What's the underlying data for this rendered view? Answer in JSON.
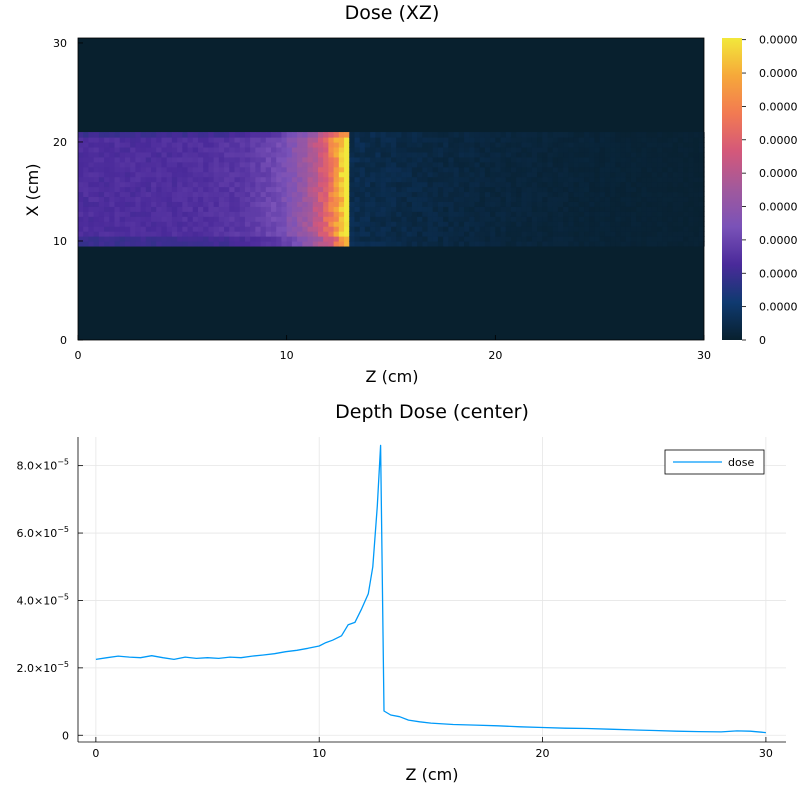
{
  "chart_data": [
    {
      "type": "heatmap",
      "title": "Dose (XZ)",
      "xlabel": "Z (cm)",
      "ylabel": "X (cm)",
      "xlim": [
        0,
        30
      ],
      "ylim": [
        0,
        30.5
      ],
      "xticks": [
        0,
        10,
        20,
        30
      ],
      "xtick_labels": [
        "0",
        "10",
        "20",
        "30"
      ],
      "yticks": [
        0,
        10,
        20,
        30
      ],
      "ytick_labels": [
        "0",
        "10",
        "20",
        "30"
      ],
      "colorbar": {
        "colors": [
          "#08202e",
          "#0f3a70",
          "#4a2a9a",
          "#7a52b8",
          "#a1599c",
          "#d4587a",
          "#f27a52",
          "#f6a83a",
          "#f2e83b"
        ],
        "tick_labels": [
          "0",
          "0.0000",
          "0.0000",
          "0.0000",
          "0.0000",
          "0.0000",
          "0.0000",
          "0.0000",
          "0.0000",
          "0.0000"
        ]
      },
      "field": {
        "x_range": [
          9.5,
          21
        ],
        "plateau_z_end": 12.8,
        "plateau_level": 0.26,
        "peak_level": 1.0,
        "tail_level": 0.06
      },
      "grid": false
    },
    {
      "type": "line",
      "title": "Depth Dose (center)",
      "xlabel": "Z (cm)",
      "ylabel": "",
      "xlim": [
        -0.8,
        30.9
      ],
      "ylim": [
        -2e-06,
        8.85e-05
      ],
      "xticks": [
        0,
        10,
        20,
        30
      ],
      "xtick_labels": [
        "0",
        "10",
        "20",
        "30"
      ],
      "yticks": [
        0,
        2e-05,
        4e-05,
        6e-05,
        8e-05
      ],
      "ytick_labels": [
        {
          "mantissa": "0",
          "exponent": ""
        },
        {
          "mantissa": "2.0×10",
          "exponent": "−5"
        },
        {
          "mantissa": "4.0×10",
          "exponent": "−5"
        },
        {
          "mantissa": "6.0×10",
          "exponent": "−5"
        },
        {
          "mantissa": "8.0×10",
          "exponent": "−5"
        }
      ],
      "grid": true,
      "legend_position": "top-right",
      "series": [
        {
          "name": "dose",
          "color": "#009af9",
          "x": [
            0,
            0.5,
            1,
            1.5,
            2,
            2.5,
            3,
            3.5,
            4,
            4.5,
            5,
            5.5,
            6,
            6.5,
            7,
            7.5,
            8,
            8.5,
            9,
            9.5,
            10,
            10.3,
            10.6,
            11,
            11.3,
            11.6,
            11.9,
            12.2,
            12.4,
            12.6,
            12.75,
            12.9,
            13.2,
            13.6,
            14,
            14.5,
            15,
            16,
            17,
            18,
            19,
            20,
            21,
            22,
            23,
            24,
            25,
            26,
            27,
            28,
            28.7,
            29.3,
            30
          ],
          "y": [
            2.25e-05,
            2.3e-05,
            2.35e-05,
            2.32e-05,
            2.3e-05,
            2.36e-05,
            2.3e-05,
            2.25e-05,
            2.32e-05,
            2.28e-05,
            2.3e-05,
            2.28e-05,
            2.32e-05,
            2.3e-05,
            2.35e-05,
            2.38e-05,
            2.42e-05,
            2.48e-05,
            2.52e-05,
            2.58e-05,
            2.65e-05,
            2.75e-05,
            2.82e-05,
            2.95e-05,
            3.28e-05,
            3.35e-05,
            3.75e-05,
            4.2e-05,
            5e-05,
            6.8e-05,
            8.6e-05,
            7.2e-06,
            6e-06,
            5.5e-06,
            4.5e-06,
            4e-06,
            3.6e-06,
            3.2e-06,
            3e-06,
            2.8e-06,
            2.5e-06,
            2.3e-06,
            2.1e-06,
            2e-06,
            1.8e-06,
            1.6e-06,
            1.4e-06,
            1.2e-06,
            1.1e-06,
            1e-06,
            1.3e-06,
            1.2e-06,
            8e-07
          ]
        }
      ]
    }
  ]
}
